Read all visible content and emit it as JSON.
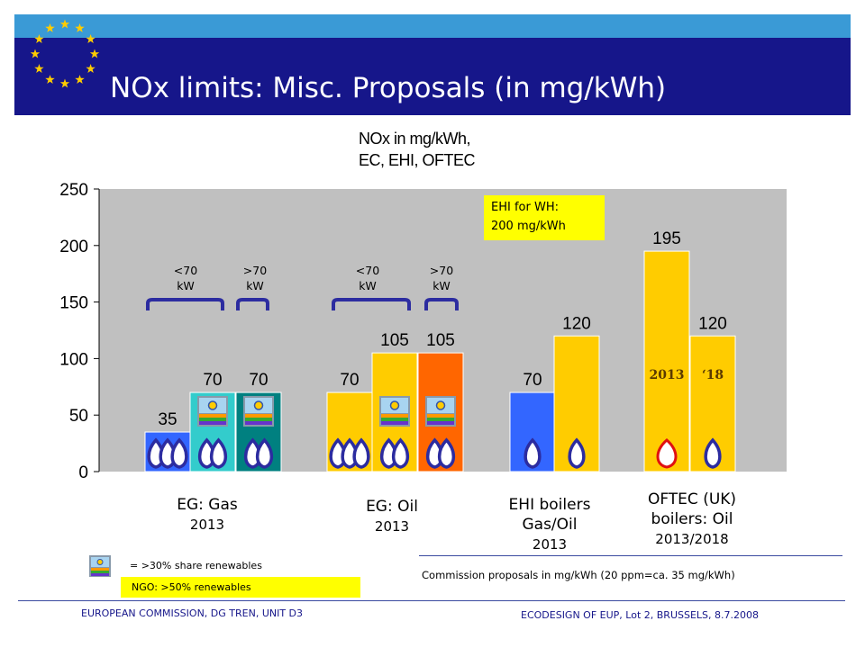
{
  "slide_title": "NOx limits: Misc. Proposals (in mg/kWh)",
  "chart_data": {
    "type": "bar",
    "title_line1": "NOx in mg/kWh,",
    "title_line2": "EC, EHI, OFTEC",
    "ylim": [
      0,
      250
    ],
    "yticks": [
      0,
      50,
      100,
      150,
      200,
      250
    ],
    "grid": false,
    "bars": [
      {
        "group": 0,
        "value": 35,
        "label": "35",
        "color": "#3366ff",
        "flames": 3,
        "renewable": false
      },
      {
        "group": 0,
        "value": 70,
        "label": "70",
        "color": "#33cccc",
        "flames": 2,
        "renewable": true
      },
      {
        "group": 0,
        "value": 70,
        "label": "70",
        "color": "#008080",
        "flames": 2,
        "renewable": true
      },
      {
        "group": 1,
        "value": 70,
        "label": "70",
        "color": "#ffcc00",
        "flames": 3,
        "renewable": false
      },
      {
        "group": 1,
        "value": 105,
        "label": "105",
        "color": "#ffcc00",
        "flames": 2,
        "renewable": true
      },
      {
        "group": 1,
        "value": 105,
        "label": "105",
        "color": "#ff6600",
        "flames": 2,
        "renewable": true
      },
      {
        "group": 2,
        "value": 70,
        "label": "70",
        "color": "#3366ff",
        "flames": 1,
        "renewable": false
      },
      {
        "group": 2,
        "value": 120,
        "label": "120",
        "color": "#ffcc00",
        "flames": 1,
        "renewable": false
      },
      {
        "group": 3,
        "value": 195,
        "label": "195",
        "color": "#ffcc00",
        "flames": 1,
        "renewable": false,
        "red_flame": true,
        "year_tag": "2013"
      },
      {
        "group": 3,
        "value": 120,
        "label": "120",
        "color": "#ffcc00",
        "flames": 1,
        "renewable": false,
        "year_tag": "‘18"
      }
    ],
    "braces": [
      {
        "line1": "<70",
        "line2": "kW"
      },
      {
        "line1": ">70",
        "line2": "kW"
      },
      {
        "line1": "<70",
        "line2": "kW"
      },
      {
        "line1": ">70",
        "line2": "kW"
      }
    ],
    "groups": [
      {
        "line1": "EG: Gas",
        "line2": "",
        "year": "2013"
      },
      {
        "line1": "EG: Oil",
        "line2": "",
        "year": "2013"
      },
      {
        "line1": "EHI boilers",
        "line2": "Gas/Oil",
        "year": "2013"
      },
      {
        "line1": "OFTEC (UK)",
        "line2": "boilers: Oil",
        "year": "2013/2018"
      }
    ]
  },
  "ehi_note": {
    "line1": "EHI for WH:",
    "line2": "200 mg/kWh"
  },
  "legend": {
    "renewables": "=  >30% share renewables",
    "ngo": "NGO: >50% renewables"
  },
  "commission_note": "Commission proposals in  mg/kWh (20 ppm=ca. 35 mg/kWh)",
  "footer": {
    "left": "EUROPEAN COMMISSION, DG TREN, UNIT D3",
    "right": "ECODESIGN OF EUP, Lot 2, BRUSSELS, 8.7.2008"
  },
  "colors": {
    "header_dark": "#16168a",
    "header_light": "#3a9ad6",
    "stars": "#ffcc00",
    "plot_bg": "#c0c0c0",
    "note_bg": "#ffff00"
  },
  "icons": {
    "eu-flag": "ring of 12 stars",
    "flame": "burner flame",
    "renewable": "solar panel icon"
  }
}
